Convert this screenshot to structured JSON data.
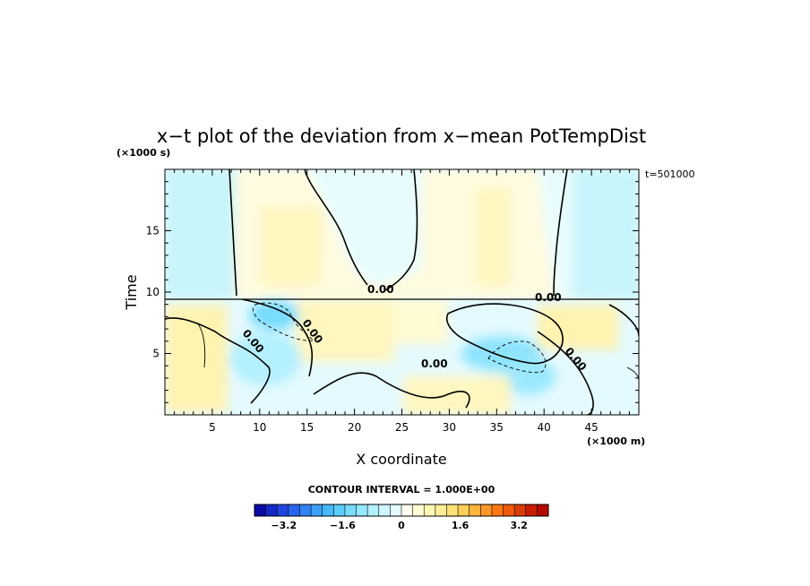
{
  "chart_data": {
    "type": "heatmap",
    "title": "x−t plot of the deviation from x−mean PotTempDist",
    "xlabel": "X coordinate",
    "ylabel": "Time",
    "x_unit": "(×1000 m)",
    "y_unit": "(×1000 s)",
    "annotation": "t=501000",
    "xlim": [
      0,
      50
    ],
    "ylim": [
      0,
      20
    ],
    "x_ticks": [
      5,
      10,
      15,
      20,
      25,
      30,
      35,
      40,
      45
    ],
    "y_ticks": [
      5,
      10,
      15
    ],
    "contour_interval_text": "CONTOUR INTERVAL = 1.000E+00",
    "contour_labels": [
      "0.00",
      "0.00",
      "0.00",
      "0.00",
      "0.00",
      "0.00"
    ],
    "colorbar": {
      "range": [
        -4,
        4
      ],
      "tick_values": [
        -3.2,
        -1.6,
        0,
        1.6,
        3.2
      ],
      "tick_labels": [
        "−3.2",
        "−1.6",
        "0",
        "1.6",
        "3.2"
      ],
      "colors": [
        "#0a0aa6",
        "#1428c8",
        "#1e46e0",
        "#2864f0",
        "#3282f5",
        "#3ca0f8",
        "#46b9fa",
        "#5acdfc",
        "#78dcfd",
        "#96e8fe",
        "#b4f0fe",
        "#cef6fe",
        "#e4fafe",
        "#fffdf0",
        "#fffbd2",
        "#fff6b4",
        "#ffee96",
        "#ffe178",
        "#ffcd5a",
        "#ffb43c",
        "#ff9628",
        "#ff7814",
        "#f05a0a",
        "#dc3c05",
        "#c81e00",
        "#b40a00"
      ]
    },
    "field_description_regions": [
      {
        "name": "upper-left cyan",
        "value": -0.4
      },
      {
        "name": "upper-center pale yellow",
        "value": 0.2
      },
      {
        "name": "upper-right cyan",
        "value": -0.4
      },
      {
        "name": "cyan blob near x=12,t=8",
        "value": -1.6
      },
      {
        "name": "cyan blob near x=36,t=5",
        "value": -1.2
      }
    ]
  }
}
